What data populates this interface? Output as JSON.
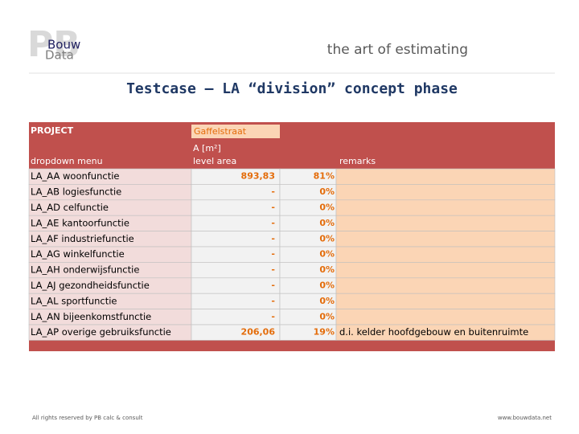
{
  "header": {
    "logo_top": "Bouw",
    "logo_bottom": "Data",
    "tagline": "the art of estimating"
  },
  "title": "Testcase – LA “division” concept phase",
  "table": {
    "project_label": "PROJECT",
    "project_value": "Gaffelstraat",
    "headers": {
      "dropdown": "dropdown menu",
      "area_unit": "A [m²]",
      "area": "level area",
      "remarks": "remarks"
    },
    "rows": [
      [
        "LA_AA woonfunctie",
        "893,83",
        "81%",
        ""
      ],
      [
        "LA_AB logiesfunctie",
        "-",
        "0%",
        ""
      ],
      [
        "LA_AD celfunctie",
        "-",
        "0%",
        ""
      ],
      [
        "LA_AE kantoorfunctie",
        "-",
        "0%",
        ""
      ],
      [
        "LA_AF industriefunctie",
        "-",
        "0%",
        ""
      ],
      [
        "LA_AG winkelfunctie",
        "-",
        "0%",
        ""
      ],
      [
        "LA_AH onderwijsfunctie",
        "-",
        "0%",
        ""
      ],
      [
        "LA_AJ gezondheidsfunctie",
        "-",
        "0%",
        ""
      ],
      [
        "LA_AL sportfunctie",
        "-",
        "0%",
        ""
      ],
      [
        "LA_AN bijeenkomstfunctie",
        "-",
        "0%",
        ""
      ],
      [
        "LA_AP overige gebruiksfunctie",
        "206,06",
        "19%",
        "d.i. kelder hoofdgebouw en buitenruimte"
      ]
    ]
  },
  "footer": {
    "copyright": "All rights reserved by PB calc & consult",
    "url": "www.bouwdata.net"
  }
}
